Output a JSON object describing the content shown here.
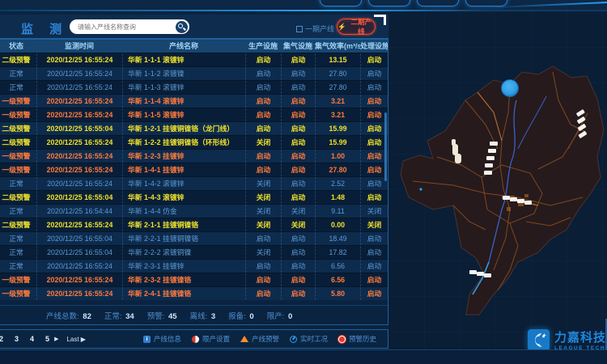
{
  "header": {
    "title": "监 测",
    "search_placeholder": "请输入产线名称查询",
    "phase1_checkbox_label": "一期产线",
    "phase2_button_label": "二期产线",
    "phase2_button_icon": "⚡"
  },
  "table": {
    "columns": [
      "状态",
      "监测时间",
      "产线名称",
      "生产设施",
      "集气设施",
      "集气效率(m³/s)",
      "处理设施"
    ],
    "rows": [
      {
        "level": "warn2",
        "status": "二级预警",
        "time": "2020/12/25 16:55:24",
        "line": "华新 1-1-1 滚镀锌",
        "prod": "启动",
        "gas": "启动",
        "eff": "13.15",
        "treat": "启动"
      },
      {
        "level": "normal",
        "status": "正常",
        "time": "2020/12/25 16:55:24",
        "line": "华新 1-1-2 滚镀镍",
        "prod": "启动",
        "gas": "启动",
        "eff": "27.80",
        "treat": "启动"
      },
      {
        "level": "normal",
        "status": "正常",
        "time": "2020/12/25 16:55:24",
        "line": "华新 1-1-3 滚镀锌",
        "prod": "启动",
        "gas": "启动",
        "eff": "27.80",
        "treat": "启动"
      },
      {
        "level": "warn1",
        "status": "一级预警",
        "time": "2020/12/25 16:55:24",
        "line": "华新 1-1-4 滚镀锌",
        "prod": "启动",
        "gas": "启动",
        "eff": "3.21",
        "treat": "启动"
      },
      {
        "level": "warn1",
        "status": "一级预警",
        "time": "2020/12/25 16:55:24",
        "line": "华新 1-1-5 滚镀锌",
        "prod": "启动",
        "gas": "启动",
        "eff": "3.21",
        "treat": "启动"
      },
      {
        "level": "warn2",
        "status": "二级预警",
        "time": "2020/12/25 16:55:04",
        "line": "华新 1-2-1 挂镀铜镍铬（龙门线）",
        "prod": "启动",
        "gas": "启动",
        "eff": "15.99",
        "treat": "启动"
      },
      {
        "level": "warn2",
        "status": "二级预警",
        "time": "2020/12/25 16:55:24",
        "line": "华新 1-2-2 挂镀铜镍铬（环形线）",
        "prod": "关闭",
        "gas": "启动",
        "eff": "15.99",
        "treat": "启动"
      },
      {
        "level": "warn1",
        "status": "一级预警",
        "time": "2020/12/25 16:55:24",
        "line": "华新 1-2-3 挂镀锌",
        "prod": "启动",
        "gas": "启动",
        "eff": "1.00",
        "treat": "启动"
      },
      {
        "level": "warn1",
        "status": "一级预警",
        "time": "2020/12/25 16:55:24",
        "line": "华新 1-4-1 挂镀锌",
        "prod": "启动",
        "gas": "启动",
        "eff": "27.80",
        "treat": "启动"
      },
      {
        "level": "normal",
        "status": "正常",
        "time": "2020/12/25 16:55:24",
        "line": "华新 1-4-2 滚镀锌",
        "prod": "关闭",
        "gas": "启动",
        "eff": "2.52",
        "treat": "启动"
      },
      {
        "level": "warn2",
        "status": "二级预警",
        "time": "2020/12/25 16:55:04",
        "line": "华新 1-4-3 滚镀锌",
        "prod": "关闭",
        "gas": "启动",
        "eff": "1.48",
        "treat": "启动"
      },
      {
        "level": "normal",
        "status": "正常",
        "time": "2020/12/25 16:54:44",
        "line": "华新 1-4-4 仿金",
        "prod": "关闭",
        "gas": "关闭",
        "eff": "9.11",
        "treat": "关闭"
      },
      {
        "level": "warn2",
        "status": "二级预警",
        "time": "2020/12/25 16:55:24",
        "line": "华新 2-1-1 挂镀铜镍铬",
        "prod": "关闭",
        "gas": "关闭",
        "eff": "0.00",
        "treat": "关闭"
      },
      {
        "level": "normal",
        "status": "正常",
        "time": "2020/12/25 16:55:04",
        "line": "华新 2-2-1 挂镀铜镍铬",
        "prod": "启动",
        "gas": "启动",
        "eff": "18.49",
        "treat": "启动"
      },
      {
        "level": "normal",
        "status": "正常",
        "time": "2020/12/25 16:55:04",
        "line": "华新 2-2-2 滚镀铜镍",
        "prod": "关闭",
        "gas": "启动",
        "eff": "17.82",
        "treat": "启动"
      },
      {
        "level": "normal",
        "status": "正常",
        "time": "2020/12/25 16:55:24",
        "line": "华新 2-3-1 挂镀锌",
        "prod": "启动",
        "gas": "启动",
        "eff": "6.56",
        "treat": "启动"
      },
      {
        "level": "warn1",
        "status": "一级预警",
        "time": "2020/12/25 16:55:24",
        "line": "华新 2-3-2 挂镀镍铬",
        "prod": "启动",
        "gas": "启动",
        "eff": "6.56",
        "treat": "启动"
      },
      {
        "level": "warn1",
        "status": "一级预警",
        "time": "2020/12/25 16:55:24",
        "line": "华新 2-4-1 挂镀镍铬",
        "prod": "启动",
        "gas": "启动",
        "eff": "5.80",
        "treat": "启动"
      }
    ]
  },
  "summary": {
    "items": [
      {
        "label": "产线总数:",
        "value": "82"
      },
      {
        "label": "正常:",
        "value": "34"
      },
      {
        "label": "预警:",
        "value": "45"
      },
      {
        "label": "离线:",
        "value": "3"
      },
      {
        "label": "报备:",
        "value": "0"
      },
      {
        "label": "限产:",
        "value": "0"
      }
    ]
  },
  "pagination": {
    "pages": [
      "2",
      "3",
      "4",
      "5"
    ],
    "next_symbol": "▶",
    "last_label": "Last ▶"
  },
  "legend": {
    "items": [
      {
        "icon": "info-square-icon",
        "glyph": "i",
        "label": "产线信息"
      },
      {
        "icon": "limit-circle-icon",
        "glyph": "",
        "label": "限产设置"
      },
      {
        "icon": "warning-triangle-icon",
        "glyph": "",
        "label": "产线预警"
      },
      {
        "icon": "realtime-gauge-icon",
        "glyph": "",
        "label": "实时工况"
      },
      {
        "icon": "alarm-history-icon",
        "glyph": "",
        "label": "预警历史"
      }
    ]
  },
  "logo": {
    "cn": "力嘉科技",
    "en": "LEAGUE TECH"
  },
  "colors": {
    "warn1": "#ff7b3d",
    "warn2": "#f0e22a",
    "normal": "#5e9bd3",
    "accent": "#2a9fe0",
    "alert": "#ff4a2a",
    "map_land": "#261a1c",
    "map_road": "#8a4e22",
    "map_river": "#3a66d0",
    "marker_blue": "#2f9fe6"
  }
}
